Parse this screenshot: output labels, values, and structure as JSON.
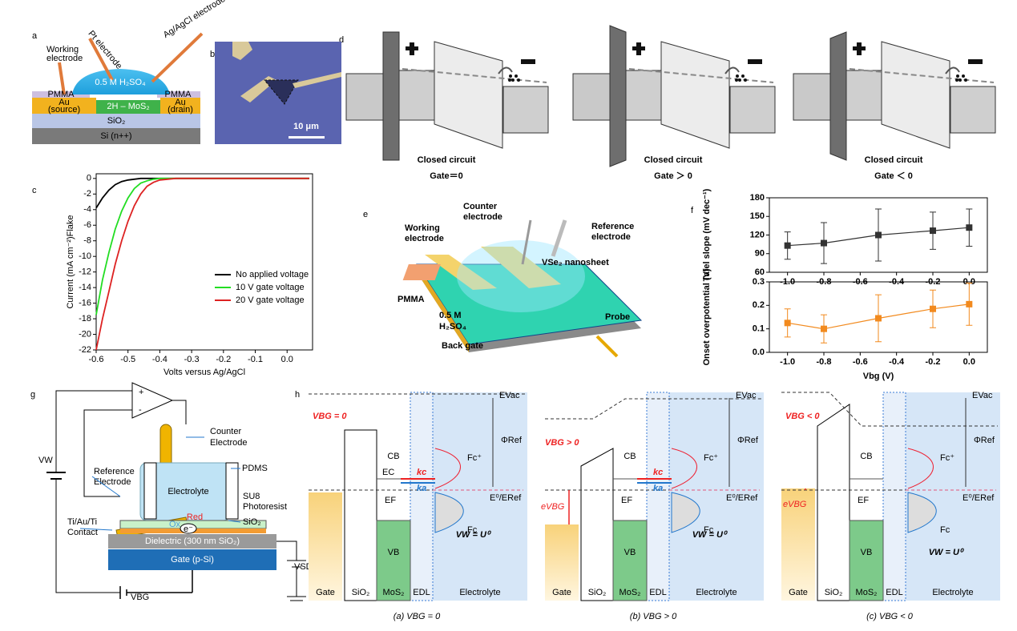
{
  "panel_labels": [
    "a",
    "b",
    "c",
    "d",
    "e",
    "f",
    "g",
    "h"
  ],
  "a": {
    "labels": [
      "Working",
      "electrode",
      "Pt electrode",
      "Ag/AgCl electrode",
      "0.5 M H₂SO₄",
      "PMMA",
      "PMMA",
      "Au",
      "(source)",
      "2H – MoS₂",
      "Au",
      "(drain)",
      "SiO₂",
      "Si (n++)"
    ]
  },
  "b": {
    "scale_bar": "10 μm"
  },
  "d": {
    "captions": [
      [
        "Closed circuit",
        "Gate＝0"
      ],
      [
        "Closed circuit",
        "Gate ＞ 0"
      ],
      [
        "Closed circuit",
        "Gate ＜ 0"
      ]
    ]
  },
  "e": {
    "labels": [
      "Counter",
      "electrode",
      "Reference",
      "electrode",
      "Working",
      "electrode",
      "VSe₂ nanosheet",
      "PMMA",
      "0.5 M",
      "H₂SO₄",
      "Probe",
      "Back gate"
    ]
  },
  "g": {
    "labels": [
      "+",
      "-",
      "Counter",
      "Electrode",
      "PDMS",
      "Reference",
      "Electrode",
      "Electrolyte",
      "SU8",
      "Photoresist",
      "SiO₂",
      "Ti/Au/Ti",
      "Contact",
      "Ox",
      "Red",
      "e⁻",
      "Dielectric (300 nm SiO₂)",
      "Gate (p-Si)",
      "VW",
      "VSD",
      "VBG"
    ]
  },
  "h": {
    "diagrams": [
      {
        "evac": "EVac",
        "phi": "ΦRef",
        "eref": "E⁰/ERef",
        "cb": "CB",
        "vb": "VB",
        "ec": "EC",
        "ef": "EF",
        "fcp": "Fc⁺",
        "fc": "Fc",
        "kc": "kc",
        "ka": "ka",
        "vbg": "VBG = 0",
        "vw": "VW = U⁰",
        "layers": [
          "Gate",
          "SiO₂",
          "MoS₂",
          "EDL",
          "Electrolyte"
        ],
        "caption": "(a) VBG = 0"
      },
      {
        "evac": "EVac",
        "phi": "ΦRef",
        "eref": "E⁰/ERef",
        "cb": "CB",
        "vb": "VB",
        "ef": "EF",
        "fcp": "Fc⁺",
        "fc": "Fc",
        "kc": "kc",
        "ka": "ka",
        "vbg": "VBG > 0",
        "ebg": "eVBG",
        "vw": "VW = U⁰",
        "layers": [
          "Gate",
          "SiO₂",
          "MoS₂",
          "EDL",
          "Electrolyte"
        ],
        "caption": "(b) VBG > 0"
      },
      {
        "evac": "EVac",
        "phi": "ΦRef",
        "eref": "E⁰/ERef",
        "cb": "CB",
        "vb": "VB",
        "ef": "EF",
        "fcp": "Fc⁺",
        "fc": "Fc",
        "vbg": "VBG < 0",
        "ebg": "eVBG",
        "vw": "VW = U⁰",
        "layers": [
          "Gate",
          "SiO₂",
          "MoS₂",
          "EDL",
          "Electrolyte"
        ],
        "caption": "(c) VBG < 0"
      }
    ]
  },
  "chart_data": [
    {
      "type": "line",
      "xlabel": "Volts versus Ag/AgCl",
      "ylabel": "Current (mA cm⁻²)Flake",
      "x": [
        -0.6,
        -0.58,
        -0.56,
        -0.54,
        -0.52,
        -0.5,
        -0.48,
        -0.46,
        -0.44,
        -0.42,
        -0.4,
        -0.35,
        -0.3,
        -0.2,
        -0.1,
        0,
        0.07
      ],
      "series": [
        {
          "name": "No applied voltage",
          "color": "#000000",
          "values": [
            -3.8,
            -2.5,
            -1.5,
            -0.8,
            -0.4,
            -0.2,
            -0.1,
            0,
            0,
            0,
            0,
            0,
            0,
            0,
            0,
            0,
            0
          ]
        },
        {
          "name": "10 V gate voltage",
          "color": "#22dd22",
          "values": [
            -17.5,
            -13,
            -9.5,
            -6.5,
            -4.2,
            -2.5,
            -1.3,
            -0.6,
            -0.3,
            -0.1,
            0,
            0,
            0,
            0,
            0,
            0,
            0
          ]
        },
        {
          "name": "20 V gate voltage",
          "color": "#dd2222",
          "values": [
            -22,
            -18,
            -14.5,
            -11,
            -8,
            -5.5,
            -3.5,
            -2,
            -1,
            -0.5,
            -0.2,
            0,
            0,
            0,
            0,
            0,
            0
          ]
        }
      ],
      "xlim": [
        -0.6,
        0.08
      ],
      "ylim": [
        -22,
        0.6
      ],
      "xticks": [
        -0.6,
        -0.5,
        -0.4,
        -0.3,
        -0.2,
        -0.1,
        {
          "value": 0,
          "label": "0.0"
        }
      ],
      "yticks": [
        0,
        -2,
        -4,
        -6,
        -8,
        -10,
        -12,
        -14,
        -16,
        -18,
        -20,
        -22
      ],
      "legend": "right"
    },
    {
      "type": "errorline",
      "ylabel": "Tafel slope (mV dec⁻¹)",
      "x": [
        -1,
        -0.8,
        -0.5,
        -0.2,
        0
      ],
      "series": [
        {
          "color": "#333333",
          "values": [
            103,
            107,
            120,
            127,
            132
          ],
          "errors": [
            22,
            33,
            42,
            30,
            30
          ]
        }
      ],
      "xlim": [
        -1.1,
        0.1
      ],
      "ylim": [
        60,
        180
      ],
      "xticks": [
        {
          "value": -1,
          "label": "-1.0"
        },
        -0.8,
        -0.6,
        -0.4,
        -0.2,
        {
          "value": 0,
          "label": "0.0"
        }
      ],
      "yticks": [
        60,
        90,
        120,
        150,
        180
      ]
    },
    {
      "type": "errorline",
      "ylabel": "Onset overpotential (V)",
      "xlabel": "Vbg (V)",
      "x": [
        -1,
        -0.8,
        -0.5,
        -0.2,
        0
      ],
      "series": [
        {
          "color": "#f28a1e",
          "values": [
            0.125,
            0.1,
            0.145,
            0.185,
            0.205
          ],
          "errors": [
            0.06,
            0.06,
            0.1,
            0.08,
            0.09
          ]
        }
      ],
      "xlim": [
        -1.1,
        0.1
      ],
      "ylim": [
        0,
        0.3
      ],
      "xticks": [
        {
          "value": -1,
          "label": "-1.0"
        },
        -0.8,
        -0.6,
        -0.4,
        -0.2,
        {
          "value": 0,
          "label": "0.0"
        }
      ],
      "yticks": [
        {
          "value": 0,
          "label": "0.0"
        },
        0.1,
        0.2,
        0.3
      ]
    }
  ]
}
